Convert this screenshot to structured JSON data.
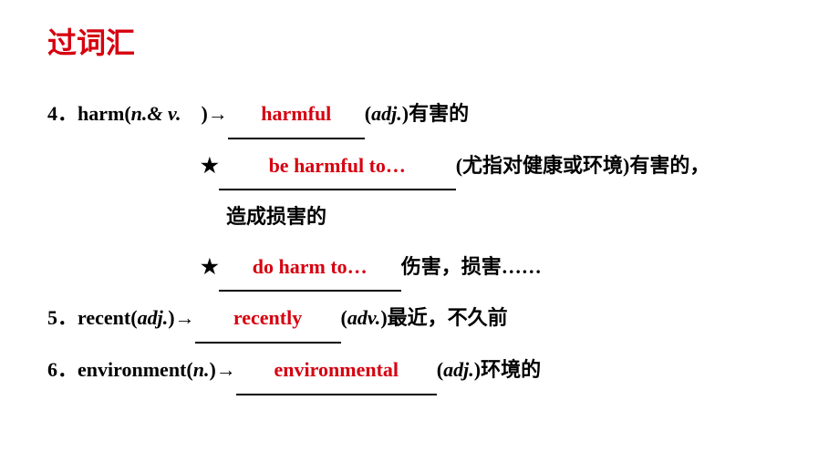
{
  "title": "过词汇",
  "items": {
    "item4": {
      "num": "4．",
      "word": "harm(",
      "pos": "n.& v.",
      "close": "　)",
      "arrow": "→",
      "blank1_fill": "harmful",
      "blank1_width": 150,
      "after1_open": "(",
      "after1_pos": "adj.",
      "after1_close": ")有害的",
      "star": "★",
      "blank2_fill": "be harmful to…",
      "blank2_width": 260,
      "after2": "(尤指对健康或环境)有害的，",
      "line3": "造成损害的",
      "blank3_fill": "do harm to…",
      "blank3_width": 200,
      "after3": "伤害，损害……"
    },
    "item5": {
      "num": "5．",
      "word": "recent(",
      "pos": "adj.",
      "close": ")",
      "arrow": "→",
      "blank_fill": "recently",
      "blank_width": 160,
      "after_open": "(",
      "after_pos": "adv.",
      "after_close": ")最近，不久前"
    },
    "item6": {
      "num": "6．",
      "word": "environment(",
      "pos": "n.",
      "close": ")",
      "arrow": "→",
      "blank_fill": "environmental",
      "blank_width": 220,
      "after_open": "(",
      "after_pos": "adj.",
      "after_close": ")环境的"
    }
  },
  "colors": {
    "accent": "#d6000f",
    "text": "#000000",
    "background": "#ffffff"
  }
}
